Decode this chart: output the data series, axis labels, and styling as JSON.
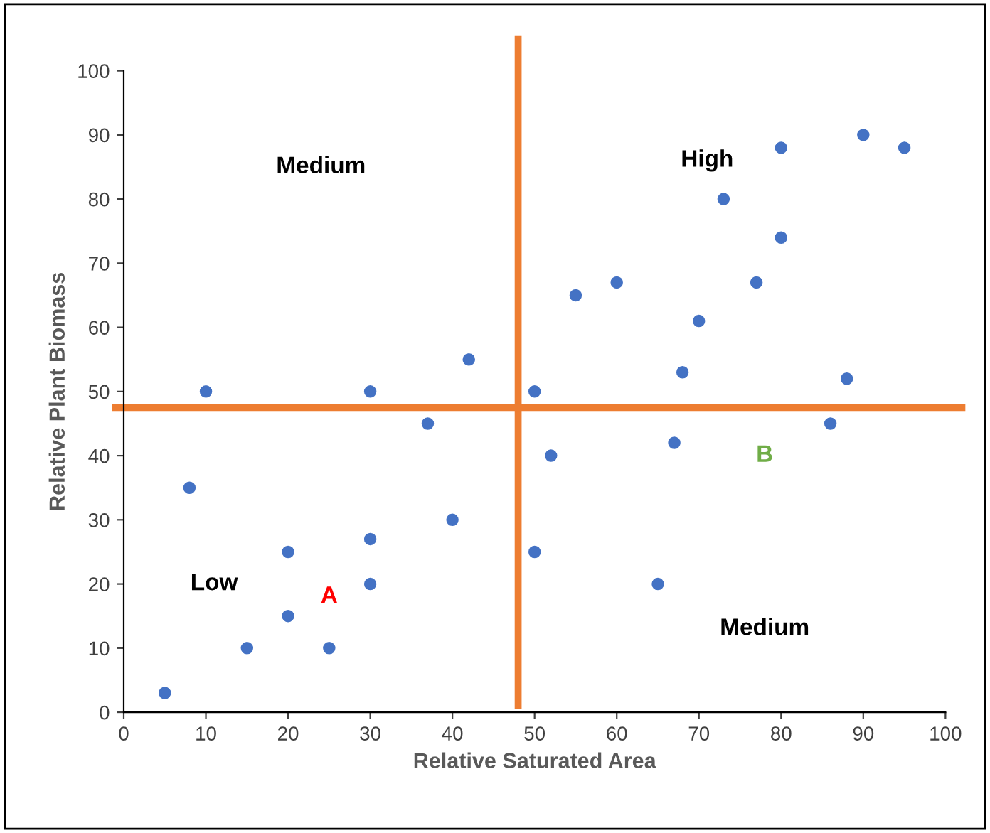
{
  "chart_data": {
    "type": "scatter",
    "xlabel": "Relative Saturated Area",
    "ylabel": "Relative Plant Biomass",
    "x": [
      5,
      8,
      10,
      15,
      20,
      20,
      25,
      30,
      30,
      30,
      37,
      40,
      42,
      50,
      50,
      52,
      55,
      60,
      65,
      67,
      68,
      70,
      73,
      77,
      80,
      80,
      86,
      88,
      90,
      95
    ],
    "series": [
      {
        "color": "#4472c4",
        "values": [
          3,
          35,
          50,
          10,
          25,
          15,
          10,
          50,
          27,
          20,
          45,
          30,
          55,
          50,
          25,
          40,
          65,
          67,
          20,
          42,
          53,
          61,
          80,
          67,
          74,
          88,
          45,
          52,
          90,
          88
        ]
      }
    ],
    "marker": "circle",
    "xlim": [
      0,
      100
    ],
    "ylim": [
      0,
      100
    ],
    "xticks": [
      0,
      10,
      20,
      30,
      40,
      50,
      60,
      70,
      80,
      90,
      100
    ],
    "yticks": [
      0,
      10,
      20,
      30,
      40,
      50,
      60,
      70,
      80,
      90,
      100
    ],
    "grid": false,
    "legend": false,
    "ref_lines": [
      {
        "axis": "x",
        "value": 48,
        "color": "#ed7d31"
      },
      {
        "axis": "y",
        "value": 47.5,
        "color": "#ed7d31"
      }
    ],
    "annotations": [
      "Medium",
      "High",
      "Low",
      "A",
      "B",
      "Medium"
    ]
  }
}
